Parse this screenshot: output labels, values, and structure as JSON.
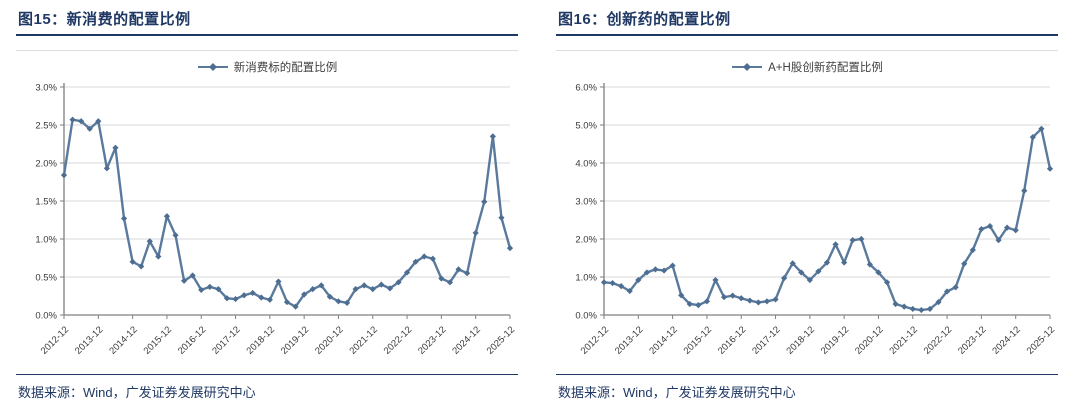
{
  "colors": {
    "navy": "#1f3864",
    "series_line": "#5a7a9d",
    "series_marker": "#4e6e91",
    "grid": "#d9d9d9",
    "axis": "#7f7f7f",
    "tick_text": "#3a3a3a"
  },
  "figures": [
    {
      "title": "图15：新消费的配置比例",
      "legend_label": "新消费标的配置比例",
      "source_note": "数据来源：Wind，广发证券发展研究中心",
      "chart_data": {
        "type": "line",
        "title": "新消费的配置比例",
        "xlabel": "",
        "ylabel": "",
        "grid": true,
        "legend_position": "top",
        "ylim": [
          0,
          3.0
        ],
        "ytick_values": [
          0,
          0.5,
          1.0,
          1.5,
          2.0,
          2.5,
          3.0
        ],
        "ytick_labels": [
          "0.0%",
          "0.5%",
          "1.0%",
          "1.5%",
          "2.0%",
          "2.5%",
          "3.0%"
        ],
        "xticks_shown": [
          "2012-12",
          "2013-12",
          "2014-12",
          "2015-12",
          "2016-12",
          "2017-12",
          "2018-12",
          "2019-12",
          "2020-12",
          "2021-12",
          "2022-12",
          "2023-12",
          "2024-12",
          "2025-12"
        ],
        "x": [
          "2012-12",
          "2013-03",
          "2013-06",
          "2013-09",
          "2013-12",
          "2014-03",
          "2014-06",
          "2014-09",
          "2014-12",
          "2015-03",
          "2015-06",
          "2015-09",
          "2015-12",
          "2016-03",
          "2016-06",
          "2016-09",
          "2016-12",
          "2017-03",
          "2017-06",
          "2017-09",
          "2017-12",
          "2018-03",
          "2018-06",
          "2018-09",
          "2018-12",
          "2019-03",
          "2019-06",
          "2019-09",
          "2019-12",
          "2020-03",
          "2020-06",
          "2020-09",
          "2020-12",
          "2021-03",
          "2021-06",
          "2021-09",
          "2021-12",
          "2022-03",
          "2022-06",
          "2022-09",
          "2022-12",
          "2023-03",
          "2023-06",
          "2023-09",
          "2023-12",
          "2024-03",
          "2024-06",
          "2024-09",
          "2024-12",
          "2025-03",
          "2025-06",
          "2025-09",
          "2025-12"
        ],
        "series": [
          {
            "name": "新消费标的配置比例",
            "values": [
              1.84,
              2.57,
              2.55,
              2.45,
              2.55,
              1.93,
              2.2,
              1.27,
              0.7,
              0.64,
              0.97,
              0.77,
              1.3,
              1.05,
              0.45,
              0.52,
              0.33,
              0.37,
              0.34,
              0.22,
              0.21,
              0.26,
              0.29,
              0.23,
              0.2,
              0.44,
              0.17,
              0.11,
              0.27,
              0.34,
              0.39,
              0.24,
              0.18,
              0.16,
              0.34,
              0.39,
              0.34,
              0.4,
              0.35,
              0.43,
              0.56,
              0.7,
              0.77,
              0.74,
              0.48,
              0.43,
              0.6,
              0.55,
              1.08,
              1.49,
              2.35,
              1.28,
              0.88
            ]
          }
        ]
      }
    },
    {
      "title": "图16：创新药的配置比例",
      "legend_label": "A+H股创新药配置比例",
      "source_note": "数据来源：Wind，广发证券发展研究中心",
      "chart_data": {
        "type": "line",
        "title": "创新药的配置比例",
        "xlabel": "",
        "ylabel": "",
        "grid": true,
        "legend_position": "top",
        "ylim": [
          0,
          6.0
        ],
        "ytick_values": [
          0,
          1.0,
          2.0,
          3.0,
          4.0,
          5.0,
          6.0
        ],
        "ytick_labels": [
          "0.0%",
          "1.0%",
          "2.0%",
          "3.0%",
          "4.0%",
          "5.0%",
          "6.0%"
        ],
        "xticks_shown": [
          "2012-12",
          "2013-12",
          "2014-12",
          "2015-12",
          "2016-12",
          "2017-12",
          "2018-12",
          "2019-12",
          "2020-12",
          "2021-12",
          "2022-12",
          "2023-12",
          "2024-12",
          "2025-12"
        ],
        "x": [
          "2012-12",
          "2013-03",
          "2013-06",
          "2013-09",
          "2013-12",
          "2014-03",
          "2014-06",
          "2014-09",
          "2014-12",
          "2015-03",
          "2015-06",
          "2015-09",
          "2015-12",
          "2016-03",
          "2016-06",
          "2016-09",
          "2016-12",
          "2017-03",
          "2017-06",
          "2017-09",
          "2017-12",
          "2018-03",
          "2018-06",
          "2018-09",
          "2018-12",
          "2019-03",
          "2019-06",
          "2019-09",
          "2019-12",
          "2020-03",
          "2020-06",
          "2020-09",
          "2020-12",
          "2021-03",
          "2021-06",
          "2021-09",
          "2021-12",
          "2022-03",
          "2022-06",
          "2022-09",
          "2022-12",
          "2023-03",
          "2023-06",
          "2023-09",
          "2023-12",
          "2024-03",
          "2024-06",
          "2024-09",
          "2024-12",
          "2025-03",
          "2025-06",
          "2025-09",
          "2025-12"
        ],
        "series": [
          {
            "name": "A+H股创新药配置比例",
            "values": [
              0.86,
              0.84,
              0.76,
              0.63,
              0.92,
              1.12,
              1.2,
              1.17,
              1.3,
              0.52,
              0.29,
              0.26,
              0.36,
              0.92,
              0.47,
              0.51,
              0.44,
              0.38,
              0.33,
              0.36,
              0.41,
              0.97,
              1.36,
              1.12,
              0.92,
              1.15,
              1.38,
              1.86,
              1.38,
              1.97,
              2.0,
              1.33,
              1.12,
              0.86,
              0.29,
              0.22,
              0.16,
              0.13,
              0.16,
              0.34,
              0.62,
              0.73,
              1.35,
              1.71,
              2.26,
              2.34,
              1.97,
              2.3,
              2.23,
              3.27,
              4.68,
              4.9,
              3.85
            ]
          }
        ]
      }
    }
  ]
}
